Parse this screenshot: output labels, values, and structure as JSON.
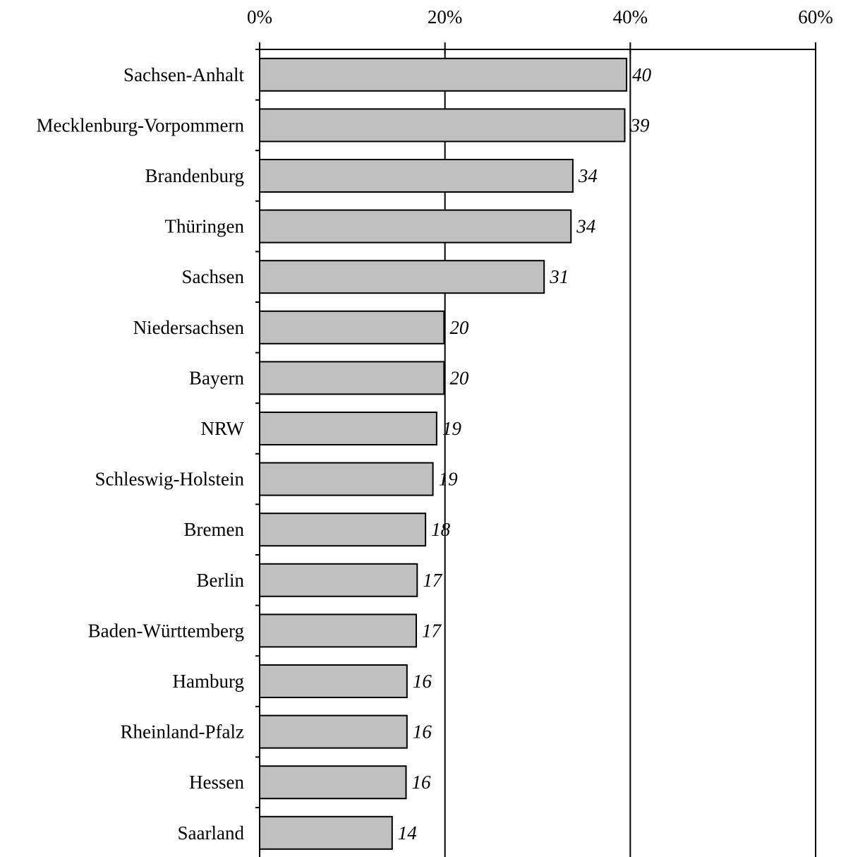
{
  "chart_data": {
    "type": "bar",
    "orientation": "horizontal",
    "categories": [
      "Sachsen-Anhalt",
      "Mecklenburg-Vorpommern",
      "Brandenburg",
      "Thüringen",
      "Sachsen",
      "Niedersachsen",
      "Bayern",
      "NRW",
      "Schleswig-Holstein",
      "Bremen",
      "Berlin",
      "Baden-Württemberg",
      "Hamburg",
      "Rheinland-Pfalz",
      "Hessen",
      "Saarland"
    ],
    "values": [
      39.6,
      39.4,
      33.8,
      33.6,
      30.7,
      19.9,
      19.9,
      19.1,
      18.7,
      17.9,
      17.0,
      16.9,
      15.9,
      15.9,
      15.8,
      14.3
    ],
    "value_labels": [
      "40",
      "39",
      "34",
      "34",
      "31",
      "20",
      "20",
      "19",
      "19",
      "18",
      "17",
      "17",
      "16",
      "16",
      "16",
      "14"
    ],
    "title": "",
    "xlabel": "",
    "ylabel": "",
    "xlim": [
      0,
      60
    ],
    "x_ticks": [
      0,
      20,
      40,
      60
    ],
    "x_tick_labels": [
      "0%",
      "20%",
      "40%",
      "60%"
    ],
    "axis_position": "top",
    "grid": true,
    "legend": false,
    "colors": {
      "bar_fill": "#c0c0c0",
      "bar_stroke": "#000000",
      "gridline": "#000000",
      "axis": "#000000"
    }
  }
}
